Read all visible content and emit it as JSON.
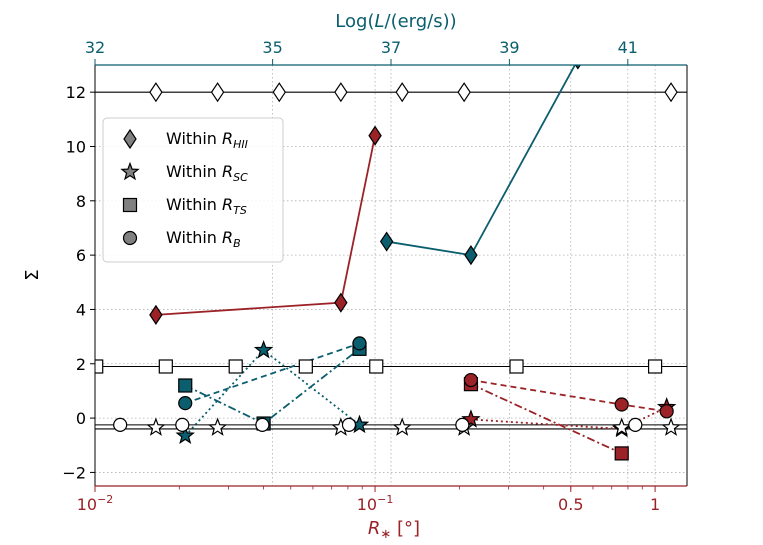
{
  "chart_data": {
    "type": "scatter",
    "colors": {
      "red": "#9b2226",
      "teal": "#0b5e6e",
      "axis_bottom": "#9b2226",
      "axis_top": "#0b5e6e",
      "grid": "#b0b0b0"
    },
    "title": "",
    "xlabel": "R∗ [°]",
    "xlabel_main": "R",
    "xlabel_sub": "∗",
    "xlabel_unit": " [°]",
    "top_xlabel": "Log(L/(erg/s))",
    "top_xlabel_parts": [
      "Log(",
      "L",
      "/(erg/s))"
    ],
    "ylabel": "Σ",
    "x_scale": "log",
    "xlim": [
      0.01,
      1.3
    ],
    "ylim": [
      -2.5,
      13
    ],
    "top_xlim": [
      32,
      42
    ],
    "x_ticks": [
      {
        "value": 0.01,
        "base": "10",
        "exp": "−2"
      },
      {
        "value": 0.1,
        "base": "10",
        "exp": "−1"
      },
      {
        "value": 0.5,
        "label": "0.5"
      },
      {
        "value": 1,
        "label": "1"
      }
    ],
    "y_ticks": [
      {
        "value": -2,
        "label": "−2"
      },
      {
        "value": 0,
        "label": "0"
      },
      {
        "value": 2,
        "label": "2"
      },
      {
        "value": 4,
        "label": "4"
      },
      {
        "value": 6,
        "label": "6"
      },
      {
        "value": 8,
        "label": "8"
      },
      {
        "value": 10,
        "label": "10"
      },
      {
        "value": 12,
        "label": "12"
      }
    ],
    "top_ticks": [
      {
        "value": 32,
        "label": "32"
      },
      {
        "value": 35,
        "label": "35"
      },
      {
        "value": 37,
        "label": "37"
      },
      {
        "value": 39,
        "label": "39"
      },
      {
        "value": 41,
        "label": "41"
      }
    ],
    "hlines": [
      12,
      1.9,
      -0.25,
      -0.4
    ],
    "legend": [
      {
        "marker": "diamond",
        "label": "Within ",
        "sub": "HII"
      },
      {
        "marker": "star",
        "label": "Within ",
        "sub": "SC"
      },
      {
        "marker": "square",
        "label": "Within ",
        "sub": "TS"
      },
      {
        "marker": "circle",
        "label": "Within ",
        "sub": "B"
      }
    ],
    "legend_var": "R",
    "open_markers": [
      {
        "marker": "diamond",
        "x": [
          0.0165,
          0.0274,
          0.0455,
          0.0755,
          0.125,
          0.208,
          1.14
        ],
        "y": [
          12,
          12,
          12,
          12,
          12,
          12,
          12
        ]
      },
      {
        "marker": "star",
        "x": [
          0.0165,
          0.0274,
          0.0755,
          0.125,
          0.208,
          0.76,
          1.14
        ],
        "y": [
          -0.35,
          -0.35,
          -0.35,
          -0.35,
          -0.35,
          -0.35,
          -0.35
        ]
      },
      {
        "marker": "square",
        "x": [
          0.0101,
          0.0179,
          0.0318,
          0.0566,
          0.101,
          0.32,
          1.0
        ],
        "y": [
          1.9,
          1.9,
          1.9,
          1.9,
          1.9,
          1.9,
          1.9
        ]
      },
      {
        "marker": "circle",
        "x": [
          0.0123,
          0.0205,
          0.0396,
          0.0807,
          0.205,
          0.85
        ],
        "y": [
          -0.25,
          -0.25,
          -0.25,
          -0.25,
          -0.25,
          -0.25
        ]
      }
    ],
    "series": [
      {
        "name": "red-hii",
        "color": "red",
        "marker": "diamond",
        "line": "solid",
        "x": [
          0.0165,
          0.0755,
          0.1
        ],
        "y": [
          3.8,
          4.25,
          10.4
        ]
      },
      {
        "name": "red-sc",
        "color": "red",
        "marker": "star",
        "line": "dotted",
        "x": [
          0.22,
          0.76,
          1.1
        ],
        "y": [
          -0.05,
          -0.4,
          0.4
        ]
      },
      {
        "name": "red-ts",
        "color": "red",
        "marker": "square",
        "line": "dashdot",
        "x": [
          0.22,
          0.76
        ],
        "y": [
          1.25,
          -1.3
        ]
      },
      {
        "name": "red-b",
        "color": "red",
        "marker": "circle",
        "line": "dashed",
        "x": [
          0.22,
          0.76,
          1.1
        ],
        "y": [
          1.4,
          0.5,
          0.25
        ]
      },
      {
        "name": "teal-hii",
        "color": "teal",
        "marker": "diamond",
        "line": "solid",
        "x": [
          0.11,
          0.22,
          0.53
        ],
        "y": [
          6.5,
          6.0,
          13.2
        ]
      },
      {
        "name": "teal-sc",
        "color": "teal",
        "marker": "star",
        "line": "dotted",
        "x": [
          0.021,
          0.04,
          0.088
        ],
        "y": [
          -0.65,
          2.5,
          -0.25
        ]
      },
      {
        "name": "teal-ts",
        "color": "teal",
        "marker": "square",
        "line": "dashdot",
        "x": [
          0.021,
          0.04,
          0.088
        ],
        "y": [
          1.2,
          -0.2,
          2.55
        ]
      },
      {
        "name": "teal-b",
        "color": "teal",
        "marker": "circle",
        "line": "dashed",
        "x": [
          0.021,
          0.088
        ],
        "y": [
          0.55,
          2.75
        ]
      }
    ]
  }
}
